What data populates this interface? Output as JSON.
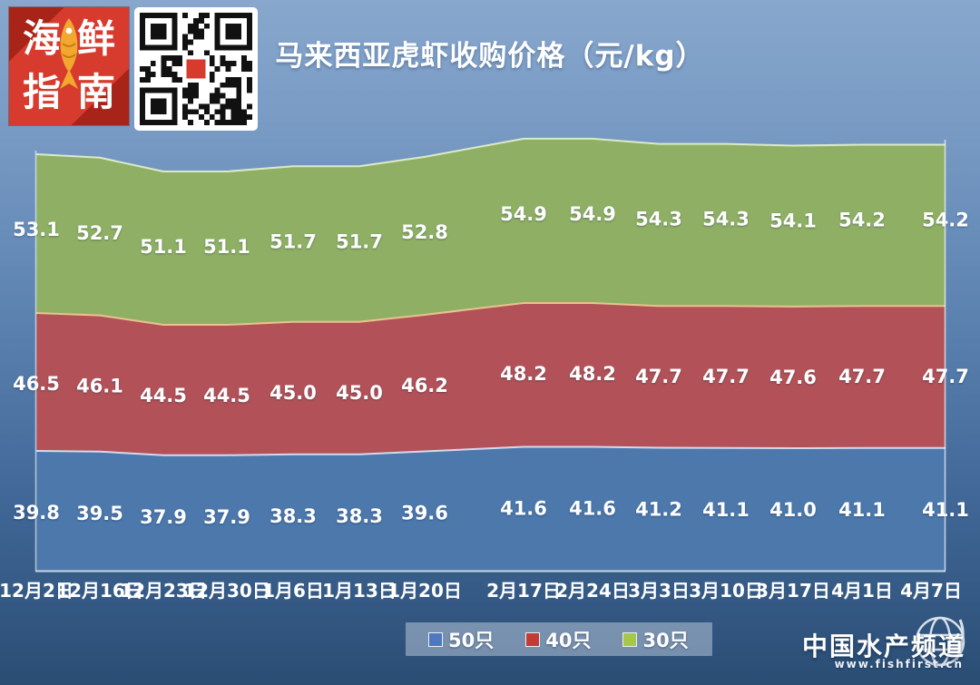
{
  "header": {
    "title": "马来西亚虎虾收购价格（元/kg）"
  },
  "logo": {
    "chars": [
      "海",
      "鲜",
      "指",
      "南"
    ],
    "bg_color": "#d63b2e",
    "fish_color": "#f2a72e"
  },
  "chart_data": {
    "type": "area",
    "title": "马来西亚虎虾收购价格（元/kg）",
    "unit": "元/kg",
    "grid": false,
    "legend_position": "bottom",
    "categories": [
      "12月2日",
      "12月16日",
      "12月23日",
      "12月30日",
      "1月6日",
      "1月13日",
      "1月20日",
      "2月17日",
      "2月24日",
      "3月3日",
      "3月10日",
      "3月17日",
      "4月1日",
      "4月7日"
    ],
    "series": [
      {
        "name": "50只",
        "color": "#4c78ac",
        "edge_color": "#d3daee",
        "values": [
          39.8,
          39.5,
          37.9,
          37.9,
          38.3,
          38.3,
          39.6,
          41.6,
          41.6,
          41.2,
          41.1,
          41.0,
          41.1,
          41.1
        ]
      },
      {
        "name": "40只",
        "color": "#b25258",
        "edge_color": "#eac28f",
        "values": [
          46.5,
          46.1,
          44.5,
          44.5,
          45.0,
          45.0,
          46.2,
          48.2,
          48.2,
          47.7,
          47.7,
          47.6,
          47.7,
          47.7
        ]
      },
      {
        "name": "30只",
        "color": "#8fb064",
        "edge_color": "#dce9c8",
        "values": [
          53.1,
          52.7,
          51.1,
          51.1,
          51.7,
          51.7,
          52.8,
          54.9,
          54.9,
          54.3,
          54.3,
          54.1,
          54.2,
          54.2
        ]
      }
    ]
  },
  "legend": {
    "items": [
      {
        "label": "50只",
        "color": "#4f76c0"
      },
      {
        "label": "40只",
        "color": "#c33a36"
      },
      {
        "label": "30只",
        "color": "#a6c848"
      }
    ]
  },
  "watermark": {
    "brand": "中国水产频道",
    "site": "www.fishfirst.cn"
  }
}
